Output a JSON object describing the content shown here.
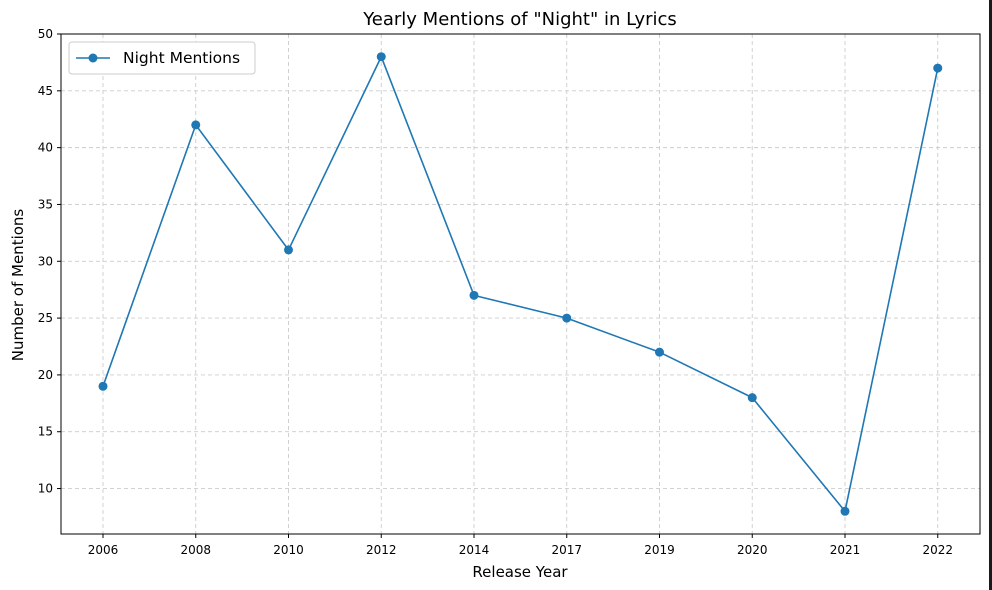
{
  "chart_data": {
    "type": "line",
    "title": "Yearly Mentions of \"Night\" in Lyrics",
    "xlabel": "Release Year",
    "ylabel": "Number of Mentions",
    "categories": [
      "2006",
      "2008",
      "2010",
      "2012",
      "2014",
      "2017",
      "2019",
      "2020",
      "2021",
      "2022"
    ],
    "series": [
      {
        "name": "Night Mentions",
        "values": [
          19,
          42,
          31,
          48,
          27,
          25,
          22,
          18,
          8,
          47
        ],
        "color": "#1f77b4",
        "marker": "circle"
      }
    ],
    "ylim": [
      6,
      50
    ],
    "yticks": [
      10,
      15,
      20,
      25,
      30,
      35,
      40,
      45,
      50
    ],
    "grid": true,
    "grid_style": "dashed",
    "grid_color": "#cccccc",
    "legend_position": "top-left"
  }
}
